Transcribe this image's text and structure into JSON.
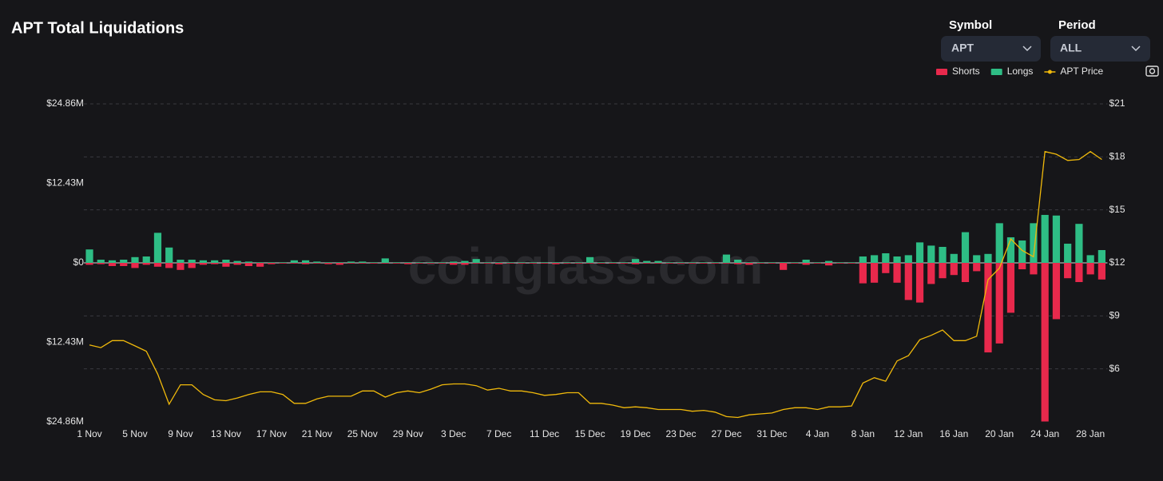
{
  "chart_data": {
    "type": "bar",
    "title": "APT Total Liquidations",
    "watermark": "coinglass.com",
    "controls": {
      "symbol": {
        "label": "Symbol",
        "value": "APT"
      },
      "period": {
        "label": "Period",
        "value": "ALL"
      }
    },
    "categories": [
      "1 Nov",
      null,
      null,
      null,
      "5 Nov",
      null,
      null,
      null,
      "9 Nov",
      null,
      null,
      null,
      "13 Nov",
      null,
      null,
      null,
      "17 Nov",
      null,
      null,
      null,
      "21 Nov",
      null,
      null,
      null,
      "25 Nov",
      null,
      null,
      null,
      "29 Nov",
      null,
      null,
      null,
      "3 Dec",
      null,
      null,
      null,
      "7 Dec",
      null,
      null,
      null,
      "11 Dec",
      null,
      null,
      null,
      "15 Dec",
      null,
      null,
      null,
      "19 Dec",
      null,
      null,
      null,
      "23 Dec",
      null,
      null,
      null,
      "27 Dec",
      null,
      null,
      null,
      "31 Dec",
      null,
      null,
      null,
      "4 Jan",
      null,
      null,
      null,
      "8 Jan",
      null,
      null,
      null,
      "12 Jan",
      null,
      null,
      null,
      "16 Jan",
      null,
      null,
      null,
      "20 Jan",
      null,
      null,
      null,
      "24 Jan",
      null,
      null,
      null,
      "28 Jan",
      null
    ],
    "series": [
      {
        "name": "Shorts",
        "color": "#e8294c",
        "type": "bar",
        "values": [
          -0.3,
          -0.2,
          -0.5,
          -0.5,
          -0.8,
          -0.3,
          -0.6,
          -0.8,
          -1.1,
          -0.8,
          -0.3,
          -0.2,
          -0.6,
          -0.3,
          -0.5,
          -0.6,
          -0.2,
          -0.1,
          -0.1,
          -0.2,
          -0.1,
          -0.2,
          -0.3,
          -0.1,
          -0.1,
          -0.1,
          -0.1,
          -0.1,
          -0.2,
          -0.1,
          -0.1,
          -0.1,
          -0.3,
          -0.3,
          -0.1,
          -0.1,
          -0.2,
          -0.1,
          -0.1,
          -0.1,
          -0.1,
          -0.2,
          -0.1,
          -0.1,
          -0.1,
          -0.1,
          -0.1,
          -0.1,
          -0.2,
          -0.1,
          -0.1,
          -0.1,
          -0.1,
          -0.1,
          -0.1,
          -0.1,
          -0.1,
          -0.2,
          -0.3,
          -0.1,
          -0.1,
          -1.1,
          -0.1,
          -0.3,
          -0.1,
          -0.4,
          -0.1,
          -0.1,
          -3.2,
          -3.1,
          -1.6,
          -3.1,
          -5.8,
          -6.2,
          -3.3,
          -2.4,
          -1.9,
          -3.0,
          -1.3,
          -14.0,
          -12.6,
          -7.8,
          -1.0,
          -1.8,
          -24.8,
          -8.8,
          -2.4,
          -3.0,
          -1.8,
          -2.6
        ]
      },
      {
        "name": "Longs",
        "color": "#2ebd85",
        "type": "bar",
        "values": [
          2.1,
          0.5,
          0.4,
          0.5,
          0.9,
          1.0,
          4.7,
          2.4,
          0.5,
          0.5,
          0.4,
          0.4,
          0.5,
          0.3,
          0.2,
          0.1,
          0.1,
          0.1,
          0.4,
          0.4,
          0.2,
          0.1,
          0.1,
          0.2,
          0.2,
          0.1,
          0.7,
          0.1,
          0.1,
          0.1,
          0.1,
          0.1,
          0.2,
          0.3,
          0.6,
          0.1,
          0.1,
          0.1,
          0.1,
          0.1,
          0.1,
          0.1,
          0.1,
          0.1,
          0.9,
          0.1,
          0.1,
          0.1,
          0.6,
          0.3,
          0.3,
          0.1,
          0.1,
          0.1,
          0.1,
          0.1,
          1.3,
          0.5,
          0.1,
          0.1,
          0.1,
          0.1,
          0.1,
          0.5,
          0.1,
          0.3,
          0.1,
          0.1,
          1.0,
          1.2,
          1.5,
          1.0,
          1.2,
          3.2,
          2.7,
          2.5,
          1.4,
          4.8,
          1.2,
          1.4,
          6.2,
          4.0,
          3.5,
          6.2,
          7.5,
          7.4,
          3.0,
          6.1,
          1.2,
          2.0
        ]
      },
      {
        "name": "APT Price",
        "color": "#f0b90b",
        "type": "line",
        "axis": "y2",
        "values": [
          7.35,
          7.2,
          7.6,
          7.6,
          7.3,
          7.0,
          5.7,
          4.0,
          5.1,
          5.1,
          4.55,
          4.25,
          4.2,
          4.35,
          4.55,
          4.7,
          4.7,
          4.55,
          4.05,
          4.05,
          4.3,
          4.45,
          4.45,
          4.45,
          4.75,
          4.75,
          4.4,
          4.65,
          4.75,
          4.65,
          4.85,
          5.1,
          5.15,
          5.15,
          5.05,
          4.8,
          4.9,
          4.75,
          4.75,
          4.65,
          4.5,
          4.55,
          4.65,
          4.65,
          4.05,
          4.05,
          3.95,
          3.8,
          3.85,
          3.8,
          3.7,
          3.7,
          3.7,
          3.6,
          3.65,
          3.55,
          3.3,
          3.25,
          3.4,
          3.45,
          3.5,
          3.7,
          3.8,
          3.8,
          3.7,
          3.85,
          3.85,
          3.9,
          5.2,
          5.5,
          5.3,
          6.45,
          6.75,
          7.65,
          7.9,
          8.2,
          7.6,
          7.6,
          7.85,
          11.05,
          11.7,
          13.35,
          12.7,
          12.35,
          18.3,
          18.15,
          17.8,
          17.85,
          18.3,
          17.85
        ]
      }
    ],
    "ylim": [
      -24.86,
      24.86
    ],
    "yticks": [
      {
        "value": -24.86,
        "label": "$24.86M"
      },
      {
        "value": -12.43,
        "label": "$12.43M"
      },
      {
        "value": 0,
        "label": "$0"
      },
      {
        "value": 12.43,
        "label": "$12.43M"
      },
      {
        "value": 24.86,
        "label": "$24.86M"
      }
    ],
    "y2lim": [
      3,
      21
    ],
    "y2ticks": [
      {
        "value": 6,
        "label": "$6"
      },
      {
        "value": 9,
        "label": "$9"
      },
      {
        "value": 12,
        "label": "$12"
      },
      {
        "value": 15,
        "label": "$15"
      },
      {
        "value": 18,
        "label": "$18"
      },
      {
        "value": 21,
        "label": "$21"
      }
    ],
    "grid": true
  }
}
